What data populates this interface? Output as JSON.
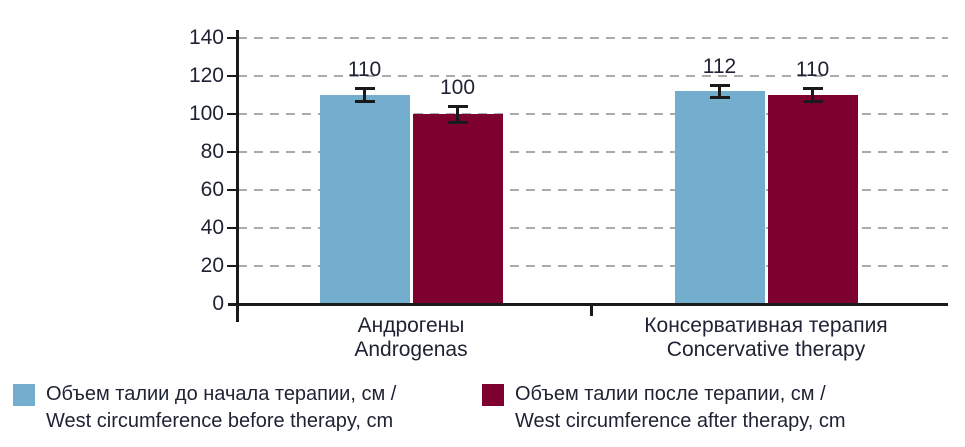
{
  "chart_data": {
    "type": "bar",
    "title": "",
    "xlabel": "",
    "ylabel": "",
    "ylim": [
      0,
      140
    ],
    "yticks": [
      0,
      20,
      40,
      60,
      80,
      100,
      120,
      140
    ],
    "grid": "horizontal-dashed",
    "legend_position": "bottom",
    "categories": [
      {
        "line1": "Андрогены",
        "line2": "Androgenas"
      },
      {
        "line1": "Консервативная терапия",
        "line2": "Concervative therapy"
      }
    ],
    "series": [
      {
        "name": "Объем талии до начала терапии, см / West circumference before therapy, cm",
        "color": "#74aece",
        "values": [
          110,
          112
        ],
        "errors": [
          4,
          4
        ]
      },
      {
        "name": "Объем талии после терапии, см / West circumference after therapy, cm",
        "color": "#7d002e",
        "values": [
          100,
          110
        ],
        "errors": [
          5,
          4
        ]
      }
    ]
  },
  "legend": {
    "items": [
      {
        "label_line1": "Объем талии до начала терапии, см /",
        "label_line2": "West circumference before therapy, cm",
        "color": "#74aece"
      },
      {
        "label_line1": "Объем талии после терапии, см /",
        "label_line2": "West circumference after therapy, cm",
        "color": "#7d002e"
      }
    ]
  },
  "colors": {
    "bar_before": "#74aece",
    "bar_after": "#7d002e",
    "grid": "#ababab",
    "axis": "#1a1a1a",
    "text": "#1e2233"
  }
}
